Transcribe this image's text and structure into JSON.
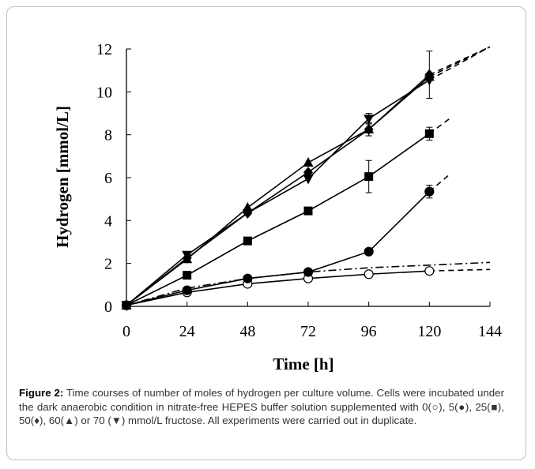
{
  "caption": {
    "label": "Figure 2:",
    "text": " Time courses of number of moles of hydrogen per culture volume. Cells were incubated under the dark anaerobic condition in nitrate-free HEPES buffer solution supplemented with 0(○), 5(●), 25(■), 50(♦), 60(▲) or 70 (▼) mmol/L fructose. All experiments were carried out in duplicate."
  },
  "chart_data": {
    "type": "line",
    "title": "",
    "xlabel": "Time [h]",
    "ylabel": "Hydrogen [mmol/L]",
    "xlim": [
      0,
      144
    ],
    "ylim": [
      0,
      12
    ],
    "xticks": [
      0,
      24,
      48,
      72,
      96,
      120,
      144
    ],
    "yticks": [
      0,
      2,
      4,
      6,
      8,
      10,
      12
    ],
    "grid": false,
    "x": [
      0,
      24,
      48,
      72,
      96,
      120
    ],
    "series": [
      {
        "marker": "open-circle",
        "fill": "#ffffff",
        "values": [
          0.05,
          0.65,
          1.05,
          1.3,
          1.5,
          1.65
        ],
        "error": [
          0,
          0,
          0,
          0,
          0,
          0
        ],
        "trend_line": {
          "style": "dashed",
          "from": [
            120,
            1.65
          ],
          "to": [
            144,
            1.72
          ]
        }
      },
      {
        "marker": "filled-circle",
        "fill": "#000000",
        "values": [
          0.05,
          0.75,
          1.3,
          1.6,
          2.55,
          5.35
        ],
        "error": [
          0,
          0,
          0,
          0,
          0.12,
          0.3
        ],
        "trend_line": {
          "style": "dashed",
          "from": [
            120,
            5.35
          ],
          "to": [
            128,
            6.15
          ]
        }
      },
      {
        "marker": "filled-square",
        "fill": "#000000",
        "values": [
          0.05,
          1.45,
          3.05,
          4.45,
          6.05,
          8.05
        ],
        "error": [
          0,
          0,
          0,
          0,
          0.75,
          0.3
        ],
        "trend_line": {
          "style": "dashed",
          "from": [
            120,
            8.05
          ],
          "to": [
            128,
            8.75
          ]
        }
      },
      {
        "marker": "filled-diamond",
        "fill": "#000000",
        "values": [
          0.05,
          2.25,
          4.35,
          6.25,
          8.25,
          10.8
        ],
        "error": [
          0,
          0,
          0,
          0,
          0.3,
          1.1
        ],
        "trend_line": {
          "style": "dashed",
          "from": [
            120,
            10.8
          ],
          "to": [
            144,
            12.1
          ]
        }
      },
      {
        "marker": "filled-triangle-up",
        "fill": "#000000",
        "values": [
          0.05,
          2.2,
          4.6,
          6.7,
          8.25,
          10.7
        ],
        "error": [
          0,
          0,
          0,
          0,
          0.3,
          0
        ],
        "trend_line": {
          "style": "dashed",
          "from": [
            120,
            10.7
          ],
          "to": [
            144,
            12.1
          ]
        }
      },
      {
        "marker": "filled-triangle-down",
        "fill": "#000000",
        "values": [
          0.05,
          2.4,
          4.35,
          5.95,
          8.75,
          10.55
        ],
        "error": [
          0,
          0,
          0,
          0,
          0.25,
          0
        ],
        "trend_line": {
          "style": "dashed",
          "from": [
            120,
            10.55
          ],
          "to": [
            144,
            12.1
          ]
        }
      }
    ],
    "extra_lines": [
      {
        "style": "dash-dot",
        "x": [
          0,
          24,
          48,
          72,
          96,
          120,
          144
        ],
        "values": [
          0.05,
          0.85,
          1.3,
          1.6,
          1.8,
          1.92,
          2.05
        ]
      }
    ]
  }
}
